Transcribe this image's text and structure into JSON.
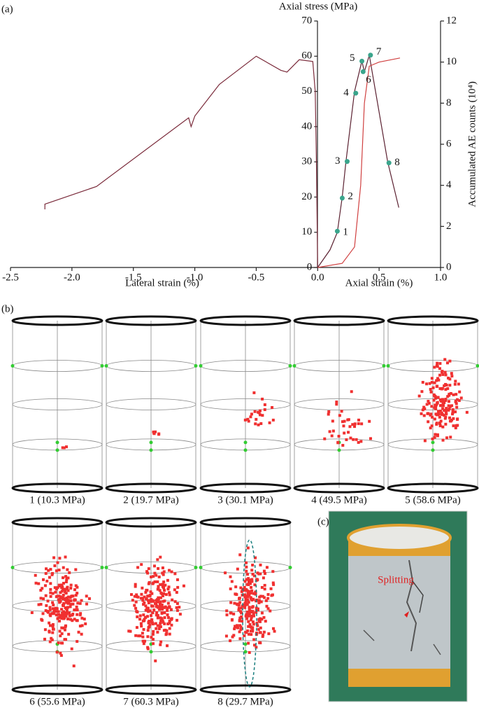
{
  "chart_data": {
    "type": "line",
    "panel_label": "(a)",
    "title": "Axial stress (MPa)",
    "xlabel_left": "Lateral strain (%)",
    "xlabel_right": "Axial strain (%)",
    "y2label": "Accumulated AE counts (10⁴)",
    "xlim": [
      -2.5,
      1.0
    ],
    "xticks": [
      -2.5,
      {
        "value": -2.0,
        "label": "-2.0"
      },
      -1.5,
      {
        "value": -1.0,
        "label": "-1.0"
      },
      -0.5,
      {
        "value": 0.0,
        "label": "0.0"
      },
      0.5,
      {
        "value": 1.0,
        "label": "1.0"
      }
    ],
    "ylim": [
      0,
      70
    ],
    "yticks": [
      0,
      10,
      20,
      30,
      40,
      50,
      60,
      70
    ],
    "y2lim": [
      0,
      12
    ],
    "y2ticks": [
      0,
      2,
      4,
      6,
      8,
      10,
      12
    ],
    "series": [
      {
        "color": "#7a2a3a",
        "x": [
          0,
          -0.01,
          -0.02,
          -0.04,
          -0.15,
          -0.25,
          -0.3,
          -0.5,
          -0.8,
          -1.0,
          -1.03,
          -1.05,
          -1.8,
          -2.22,
          -2.22
        ],
        "values": [
          0,
          30,
          50,
          58.5,
          59,
          55.5,
          56,
          60,
          52,
          43,
          40,
          42.5,
          23,
          18,
          16.5
        ]
      },
      {
        "color": "#5a2030",
        "x": [
          0,
          0.1,
          0.16,
          0.2,
          0.23,
          0.3,
          0.36,
          0.38,
          0.42,
          0.57,
          0.66
        ],
        "values": [
          0,
          5,
          10,
          20,
          30,
          50,
          58.6,
          55.6,
          60.3,
          30,
          17
        ]
      },
      {
        "color": "#d04040",
        "axis": "y2",
        "x": [
          0,
          0.2,
          0.3,
          0.35,
          0.38,
          0.42,
          0.5,
          0.67
        ],
        "values": [
          0,
          0.2,
          1,
          4,
          8,
          9.8,
          10,
          10.2
        ]
      }
    ],
    "points": {
      "color": "#3aa58c",
      "labels": [
        "1",
        "2",
        "3",
        "4",
        "5",
        "6",
        "7",
        "8"
      ],
      "x": [
        0.16,
        0.2,
        0.24,
        0.31,
        0.36,
        0.37,
        0.43,
        0.58
      ],
      "values": [
        10.3,
        19.7,
        30.1,
        49.5,
        58.6,
        55.6,
        60.3,
        29.7
      ]
    }
  },
  "panel_b": {
    "label": "(b)",
    "captions": [
      "1 (10.3 MPa)",
      "2 (19.7 MPa)",
      "3 (30.1 MPa)",
      "4 (49.5 MPa)",
      "5 (58.6 MPa)",
      "6 (55.6 MPa)",
      "7 (60.3 MPa)",
      "8 (29.7 MPa)"
    ]
  },
  "panel_c": {
    "label": "(c)",
    "annotation": "Splitting"
  }
}
